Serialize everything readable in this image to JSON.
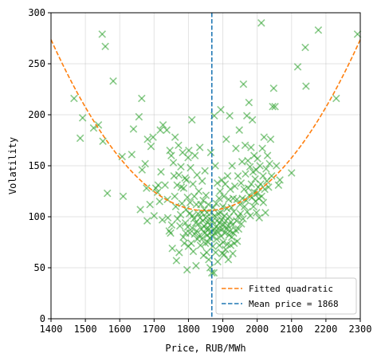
{
  "chart_data": {
    "type": "scatter",
    "xlabel": "Price, RUB/MWh",
    "ylabel": "Volatility",
    "xlim": [
      1400,
      2300
    ],
    "ylim": [
      0,
      300
    ],
    "xticks": [
      1400,
      1500,
      1600,
      1700,
      1800,
      1900,
      2000,
      2100,
      2200,
      2300
    ],
    "yticks": [
      0,
      50,
      100,
      150,
      200,
      250,
      300
    ],
    "grid": true,
    "legend_position": "lower-right",
    "colors": {
      "scatter": "#2ca02c",
      "fit": "#ff7f0e",
      "mean": "#1f77b4"
    },
    "fit": {
      "label": "Fitted quadratic",
      "type": "quadratic",
      "vertex_x": 1850,
      "vertex_y": 106,
      "a": 0.000828
    },
    "mean_line": {
      "label": "Mean price = 1868",
      "x": 1868
    },
    "scatter_points": [
      [
        1467,
        216
      ],
      [
        1485,
        177
      ],
      [
        1492,
        197
      ],
      [
        1524,
        187
      ],
      [
        1538,
        190
      ],
      [
        1549,
        279
      ],
      [
        1551,
        174
      ],
      [
        1558,
        267
      ],
      [
        1564,
        123
      ],
      [
        1581,
        233
      ],
      [
        1607,
        159
      ],
      [
        1610,
        120
      ],
      [
        1635,
        161
      ],
      [
        1640,
        186
      ],
      [
        1656,
        198
      ],
      [
        1660,
        107
      ],
      [
        1664,
        216
      ],
      [
        1665,
        146
      ],
      [
        1674,
        152
      ],
      [
        1678,
        128
      ],
      [
        1680,
        96
      ],
      [
        1681,
        176
      ],
      [
        1688,
        112
      ],
      [
        1691,
        169
      ],
      [
        1697,
        178
      ],
      [
        1700,
        101
      ],
      [
        1705,
        128
      ],
      [
        1710,
        124
      ],
      [
        1712,
        131
      ],
      [
        1716,
        115
      ],
      [
        1718,
        185
      ],
      [
        1720,
        144
      ],
      [
        1724,
        97
      ],
      [
        1726,
        190
      ],
      [
        1732,
        131
      ],
      [
        1737,
        185
      ],
      [
        1739,
        117
      ],
      [
        1740,
        99
      ],
      [
        1744,
        86
      ],
      [
        1746,
        165
      ],
      [
        1748,
        84
      ],
      [
        1750,
        160
      ],
      [
        1751,
        92
      ],
      [
        1753,
        69
      ],
      [
        1756,
        153
      ],
      [
        1758,
        140
      ],
      [
        1760,
        120
      ],
      [
        1761,
        178
      ],
      [
        1763,
        110
      ],
      [
        1765,
        57
      ],
      [
        1767,
        131
      ],
      [
        1768,
        98
      ],
      [
        1771,
        170
      ],
      [
        1772,
        141
      ],
      [
        1773,
        65
      ],
      [
        1775,
        91
      ],
      [
        1777,
        102
      ],
      [
        1778,
        149
      ],
      [
        1779,
        129
      ],
      [
        1781,
        113
      ],
      [
        1783,
        163
      ],
      [
        1785,
        80
      ],
      [
        1786,
        128
      ],
      [
        1788,
        74
      ],
      [
        1790,
        138
      ],
      [
        1791,
        94
      ],
      [
        1792,
        84
      ],
      [
        1793,
        107
      ],
      [
        1794,
        136
      ],
      [
        1796,
        48
      ],
      [
        1797,
        119
      ],
      [
        1798,
        90
      ],
      [
        1799,
        158
      ],
      [
        1800,
        71
      ],
      [
        1801,
        165
      ],
      [
        1803,
        103
      ],
      [
        1804,
        84
      ],
      [
        1805,
        114
      ],
      [
        1806,
        148
      ],
      [
        1808,
        74
      ],
      [
        1810,
        195
      ],
      [
        1811,
        89
      ],
      [
        1812,
        101
      ],
      [
        1813,
        132
      ],
      [
        1814,
        66
      ],
      [
        1816,
        98
      ],
      [
        1817,
        120
      ],
      [
        1818,
        83
      ],
      [
        1819,
        160
      ],
      [
        1821,
        94
      ],
      [
        1822,
        52
      ],
      [
        1823,
        112
      ],
      [
        1824,
        86
      ],
      [
        1825,
        141
      ],
      [
        1826,
        78
      ],
      [
        1828,
        103
      ],
      [
        1829,
        93
      ],
      [
        1830,
        125
      ],
      [
        1831,
        81
      ],
      [
        1833,
        168
      ],
      [
        1834,
        99
      ],
      [
        1835,
        72
      ],
      [
        1836,
        112
      ],
      [
        1838,
        88
      ],
      [
        1839,
        104
      ],
      [
        1840,
        135
      ],
      [
        1841,
        79
      ],
      [
        1842,
        96
      ],
      [
        1843,
        116
      ],
      [
        1844,
        62
      ],
      [
        1845,
        91
      ],
      [
        1846,
        107
      ],
      [
        1847,
        84
      ],
      [
        1848,
        145
      ],
      [
        1849,
        74
      ],
      [
        1850,
        99
      ],
      [
        1851,
        121
      ],
      [
        1852,
        88
      ],
      [
        1853,
        65
      ],
      [
        1854,
        104
      ],
      [
        1855,
        82
      ],
      [
        1856,
        94
      ],
      [
        1857,
        75
      ],
      [
        1858,
        112
      ],
      [
        1859,
        58
      ],
      [
        1860,
        88
      ],
      [
        1861,
        98
      ],
      [
        1862,
        79
      ],
      [
        1863,
        50
      ],
      [
        1864,
        92
      ],
      [
        1865,
        163
      ],
      [
        1866,
        85
      ],
      [
        1867,
        104
      ],
      [
        1868,
        45
      ],
      [
        1869,
        81
      ],
      [
        1870,
        96
      ],
      [
        1871,
        71
      ],
      [
        1872,
        109
      ],
      [
        1873,
        87
      ],
      [
        1874,
        45
      ],
      [
        1875,
        199
      ],
      [
        1876,
        101
      ],
      [
        1877,
        84
      ],
      [
        1878,
        150
      ],
      [
        1879,
        65
      ],
      [
        1880,
        90
      ],
      [
        1881,
        113
      ],
      [
        1882,
        78
      ],
      [
        1883,
        96
      ],
      [
        1884,
        133
      ],
      [
        1885,
        56
      ],
      [
        1886,
        85
      ],
      [
        1887,
        103
      ],
      [
        1888,
        89
      ],
      [
        1889,
        118
      ],
      [
        1890,
        72
      ],
      [
        1891,
        94
      ],
      [
        1892,
        125
      ],
      [
        1893,
        104
      ],
      [
        1894,
        205
      ],
      [
        1895,
        81
      ],
      [
        1896,
        97
      ],
      [
        1897,
        136
      ],
      [
        1898,
        64
      ],
      [
        1899,
        88
      ],
      [
        1900,
        110
      ],
      [
        1901,
        75
      ],
      [
        1902,
        92
      ],
      [
        1903,
        120
      ],
      [
        1904,
        63
      ],
      [
        1905,
        101
      ],
      [
        1906,
        84
      ],
      [
        1907,
        132
      ],
      [
        1908,
        68
      ],
      [
        1909,
        96
      ],
      [
        1910,
        176
      ],
      [
        1911,
        88
      ],
      [
        1912,
        108
      ],
      [
        1913,
        73
      ],
      [
        1914,
        140
      ],
      [
        1915,
        91
      ],
      [
        1916,
        58
      ],
      [
        1917,
        117
      ],
      [
        1918,
        82
      ],
      [
        1919,
        100
      ],
      [
        1920,
        199
      ],
      [
        1921,
        86
      ],
      [
        1922,
        127
      ],
      [
        1923,
        72
      ],
      [
        1924,
        95
      ],
      [
        1925,
        109
      ],
      [
        1926,
        80
      ],
      [
        1927,
        150
      ],
      [
        1928,
        92
      ],
      [
        1929,
        64
      ],
      [
        1930,
        118
      ],
      [
        1931,
        84
      ],
      [
        1932,
        105
      ],
      [
        1933,
        74
      ],
      [
        1935,
        130
      ],
      [
        1937,
        87
      ],
      [
        1938,
        167
      ],
      [
        1940,
        96
      ],
      [
        1941,
        117
      ],
      [
        1942,
        76
      ],
      [
        1944,
        140
      ],
      [
        1945,
        100
      ],
      [
        1946,
        88
      ],
      [
        1948,
        185
      ],
      [
        1950,
        112
      ],
      [
        1951,
        103
      ],
      [
        1953,
        133
      ],
      [
        1954,
        93
      ],
      [
        1956,
        154
      ],
      [
        1957,
        118
      ],
      [
        1959,
        98
      ],
      [
        1960,
        230
      ],
      [
        1962,
        127
      ],
      [
        1963,
        110
      ],
      [
        1965,
        170
      ],
      [
        1966,
        142
      ],
      [
        1968,
        116
      ],
      [
        1970,
        199
      ],
      [
        1971,
        105
      ],
      [
        1973,
        155
      ],
      [
        1974,
        128
      ],
      [
        1976,
        212
      ],
      [
        1977,
        121
      ],
      [
        1979,
        149
      ],
      [
        1980,
        101
      ],
      [
        1982,
        168
      ],
      [
        1983,
        132
      ],
      [
        1985,
        119
      ],
      [
        1986,
        195
      ],
      [
        1988,
        144
      ],
      [
        1989,
        110
      ],
      [
        1991,
        160
      ],
      [
        1992,
        124
      ],
      [
        1994,
        137
      ],
      [
        1995,
        115
      ],
      [
        1997,
        146
      ],
      [
        1998,
        104
      ],
      [
        2000,
        123
      ],
      [
        2001,
        157
      ],
      [
        2003,
        129
      ],
      [
        2005,
        118
      ],
      [
        2006,
        99
      ],
      [
        2008,
        150
      ],
      [
        2010,
        132
      ],
      [
        2012,
        290
      ],
      [
        2013,
        120
      ],
      [
        2015,
        167
      ],
      [
        2017,
        140
      ],
      [
        2018,
        114
      ],
      [
        2020,
        178
      ],
      [
        2022,
        127
      ],
      [
        2024,
        104
      ],
      [
        2026,
        147
      ],
      [
        2028,
        135
      ],
      [
        2030,
        160
      ],
      [
        2033,
        129
      ],
      [
        2036,
        152
      ],
      [
        2039,
        176
      ],
      [
        2042,
        140
      ],
      [
        2045,
        208
      ],
      [
        2048,
        226
      ],
      [
        2052,
        208
      ],
      [
        2056,
        150
      ],
      [
        2062,
        131
      ],
      [
        2066,
        136
      ],
      [
        2100,
        143
      ],
      [
        2118,
        247
      ],
      [
        2140,
        266
      ],
      [
        2142,
        228
      ],
      [
        2178,
        283
      ],
      [
        2230,
        216
      ],
      [
        2292,
        279
      ]
    ]
  }
}
